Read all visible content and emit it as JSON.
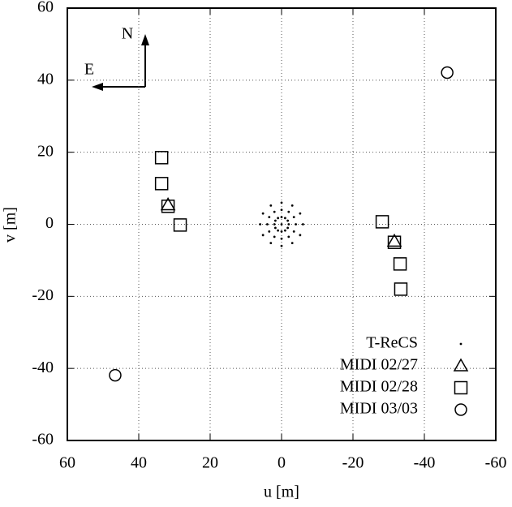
{
  "chart_data": {
    "type": "scatter",
    "xlabel": "u [m]",
    "ylabel": "v [m]",
    "xlim": [
      60,
      -60
    ],
    "ylim": [
      -60,
      60
    ],
    "xticks": [
      60,
      40,
      20,
      0,
      -20,
      -40,
      -60
    ],
    "yticks": [
      -60,
      -40,
      -20,
      0,
      20,
      40,
      60
    ],
    "grid": true,
    "legend": "lower right",
    "annotations": [
      "N",
      "E"
    ],
    "series": [
      {
        "name": "T-ReCS",
        "marker": "dot",
        "color": "#000000",
        "x": [
          0,
          2,
          1.73,
          1,
          0,
          -1,
          -1.73,
          -2,
          -1.73,
          -1,
          0,
          1,
          1.73,
          4,
          3.46,
          2,
          0,
          -2,
          -3.46,
          -4,
          -3.46,
          -2,
          0,
          2,
          3.46,
          6,
          5.2,
          3,
          0,
          -3,
          -5.2,
          -6,
          -5.2,
          -3,
          0,
          3,
          5.2
        ],
        "y": [
          0,
          0,
          1,
          1.73,
          2,
          1.73,
          1,
          0,
          -1,
          -1.73,
          -2,
          -1.73,
          -1,
          0,
          2,
          3.46,
          4,
          3.46,
          2,
          0,
          -2,
          -3.46,
          -4,
          -3.46,
          -2,
          0,
          3,
          5.2,
          6,
          5.2,
          3,
          0,
          -3,
          -5.2,
          -6,
          -5.2,
          -3
        ]
      },
      {
        "name": "MIDI 02/27",
        "marker": "triangle",
        "color": "#000000",
        "x": [
          31.8,
          -31.6
        ],
        "y": [
          5.4,
          -4.7
        ]
      },
      {
        "name": "MIDI 02/28",
        "marker": "square",
        "color": "#000000",
        "x": [
          33.6,
          33.6,
          31.8,
          28.4,
          -28.2,
          -31.6,
          -33.2,
          -33.4
        ],
        "y": [
          18.5,
          11.3,
          5.0,
          -0.2,
          0.7,
          -5.0,
          -11.0,
          -18.0
        ]
      },
      {
        "name": "MIDI 03/03",
        "marker": "circle",
        "color": "#000000",
        "x": [
          -46.4,
          46.6
        ],
        "y": [
          42.1,
          -41.9
        ]
      }
    ]
  }
}
